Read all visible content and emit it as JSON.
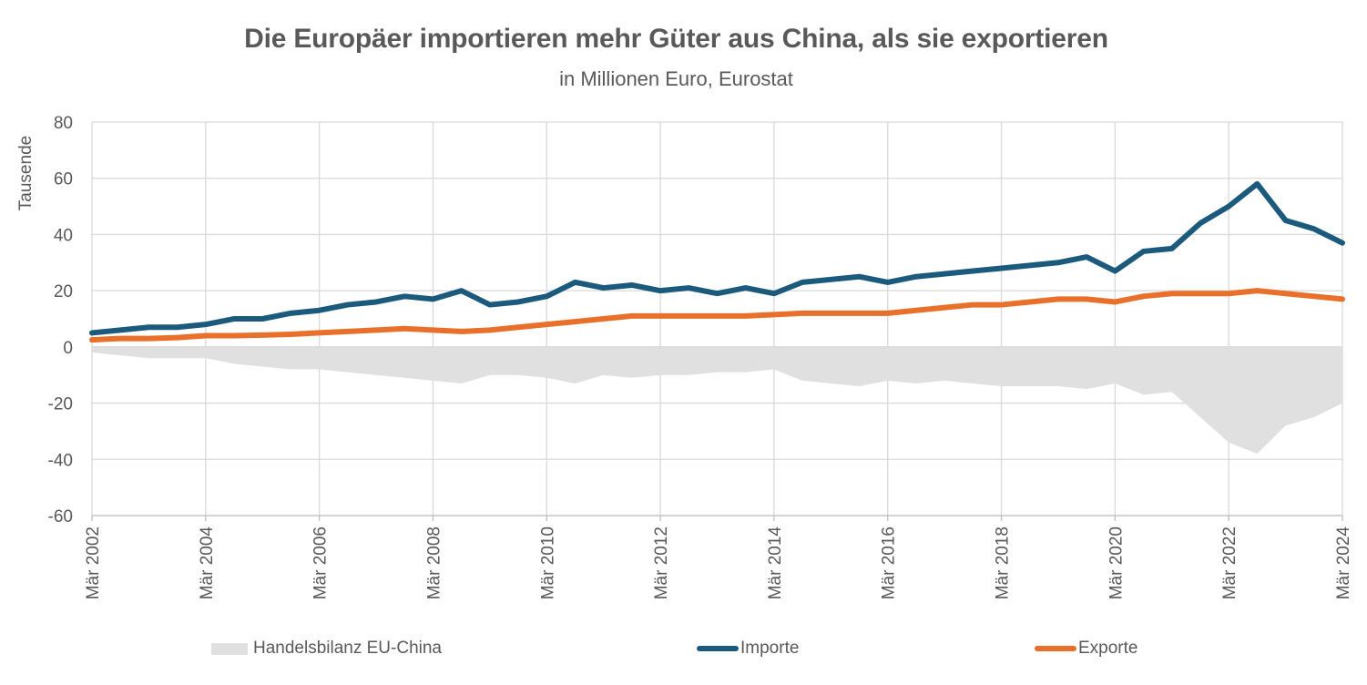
{
  "chart_data": {
    "type": "line",
    "title": "Die Europäer importieren mehr Güter aus China, als sie exportieren",
    "subtitle": "in Millionen Euro, Eurostat",
    "ylabel": "Tausende",
    "xlabel": "",
    "ylim": [
      -60,
      80
    ],
    "yticks": [
      80,
      60,
      40,
      20,
      0,
      -20,
      -40,
      -60
    ],
    "xlim": [
      2002.167,
      2024.167
    ],
    "x_tick_labels": [
      "Mär 2002",
      "Mär 2004",
      "Mär 2006",
      "Mär 2008",
      "Mär 2010",
      "Mär 2012",
      "Mär 2014",
      "Mär 2016",
      "Mär 2018",
      "Mär 2020",
      "Mär 2022",
      "Mär 2024"
    ],
    "x_tick_values": [
      2002.167,
      2004.167,
      2006.167,
      2008.167,
      2010.167,
      2012.167,
      2014.167,
      2016.167,
      2018.167,
      2020.167,
      2022.167,
      2024.167
    ],
    "grid": true,
    "legend_position": "bottom",
    "x": [
      2002.167,
      2002.667,
      2003.167,
      2003.667,
      2004.167,
      2004.667,
      2005.167,
      2005.667,
      2006.167,
      2006.667,
      2007.167,
      2007.667,
      2008.167,
      2008.667,
      2009.167,
      2009.667,
      2010.167,
      2010.667,
      2011.167,
      2011.667,
      2012.167,
      2012.667,
      2013.167,
      2013.667,
      2014.167,
      2014.667,
      2015.167,
      2015.667,
      2016.167,
      2016.667,
      2017.167,
      2017.667,
      2018.167,
      2018.667,
      2019.167,
      2019.667,
      2020.167,
      2020.667,
      2021.167,
      2021.667,
      2022.167,
      2022.667,
      2023.167,
      2023.667,
      2024.167
    ],
    "series": [
      {
        "name": "Handelsbilanz EU-China",
        "kind": "area",
        "color": "#e0e0e0",
        "values": [
          -2,
          -3,
          -4,
          -4,
          -4,
          -6,
          -7,
          -8,
          -8,
          -9,
          -10,
          -11,
          -12,
          -13,
          -10,
          -10,
          -11,
          -13,
          -10,
          -11,
          -10,
          -10,
          -9,
          -9,
          -8,
          -12,
          -13,
          -14,
          -12,
          -13,
          -12,
          -13,
          -14,
          -14,
          -14,
          -15,
          -13,
          -17,
          -16,
          -25,
          -34,
          -38,
          -28,
          -25,
          -20
        ]
      },
      {
        "name": "Importe",
        "kind": "line",
        "color": "#1b5a7d",
        "values": [
          5,
          6,
          7,
          7,
          8,
          10,
          10,
          12,
          13,
          15,
          16,
          18,
          17,
          20,
          15,
          16,
          18,
          23,
          21,
          22,
          20,
          21,
          19,
          21,
          19,
          23,
          24,
          25,
          23,
          25,
          26,
          27,
          28,
          29,
          30,
          32,
          27,
          34,
          35,
          44,
          50,
          58,
          45,
          42,
          37
        ]
      },
      {
        "name": "Exporte",
        "kind": "line",
        "color": "#e8702a",
        "values": [
          2.5,
          3,
          3,
          3.3,
          4,
          4,
          4.2,
          4.5,
          5,
          5.5,
          6,
          6.5,
          6,
          5.5,
          6,
          7,
          8,
          9,
          10,
          11,
          11,
          11,
          11,
          11,
          11.5,
          12,
          12,
          12,
          12,
          13,
          14,
          15,
          15,
          16,
          17,
          17,
          16,
          18,
          19,
          19,
          19,
          20,
          19,
          18,
          17
        ]
      }
    ]
  }
}
